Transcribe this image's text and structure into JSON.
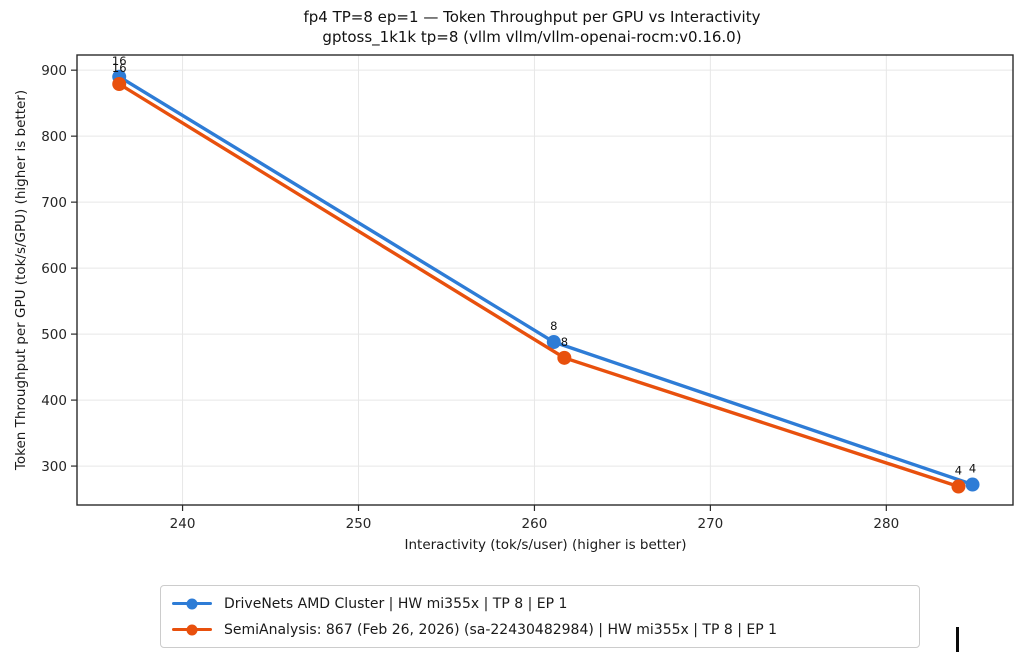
{
  "chart_data": {
    "type": "line",
    "title": "fp4 TP=8 ep=1 — Token Throughput per GPU vs Interactivity",
    "subtitle": "gptoss_1k1k tp=8 (vllm vllm/vllm-openai-rocm:v0.16.0)",
    "xlabel": "Interactivity (tok/s/user) (higher is better)",
    "ylabel": "Token Throughput per GPU (tok/s/GPU) (higher is better)",
    "xlim": [
      234.0,
      287.2
    ],
    "ylim": [
      241,
      923
    ],
    "xticks": [
      240,
      250,
      260,
      270,
      280
    ],
    "yticks": [
      300,
      400,
      500,
      600,
      700,
      800,
      900
    ],
    "grid": true,
    "grid_color": "#e7e7e7",
    "legend_position": "bottom",
    "series": [
      {
        "name": "DriveNets AMD Cluster | HW mi355x | TP 8 | EP 1",
        "color": "#2E7CD6",
        "points": [
          {
            "x": 236.4,
            "y": 890,
            "label": "16"
          },
          {
            "x": 261.1,
            "y": 488,
            "label": "8"
          },
          {
            "x": 284.9,
            "y": 272,
            "label": "4"
          }
        ]
      },
      {
        "name": "SemiAnalysis: 867 (Feb 26, 2026) (sa-22430482984) | HW mi355x | TP 8 | EP 1",
        "color": "#E8500D",
        "points": [
          {
            "x": 236.4,
            "y": 879,
            "label": "16"
          },
          {
            "x": 261.7,
            "y": 464,
            "label": "8"
          },
          {
            "x": 284.1,
            "y": 269,
            "label": "4"
          }
        ]
      }
    ]
  }
}
